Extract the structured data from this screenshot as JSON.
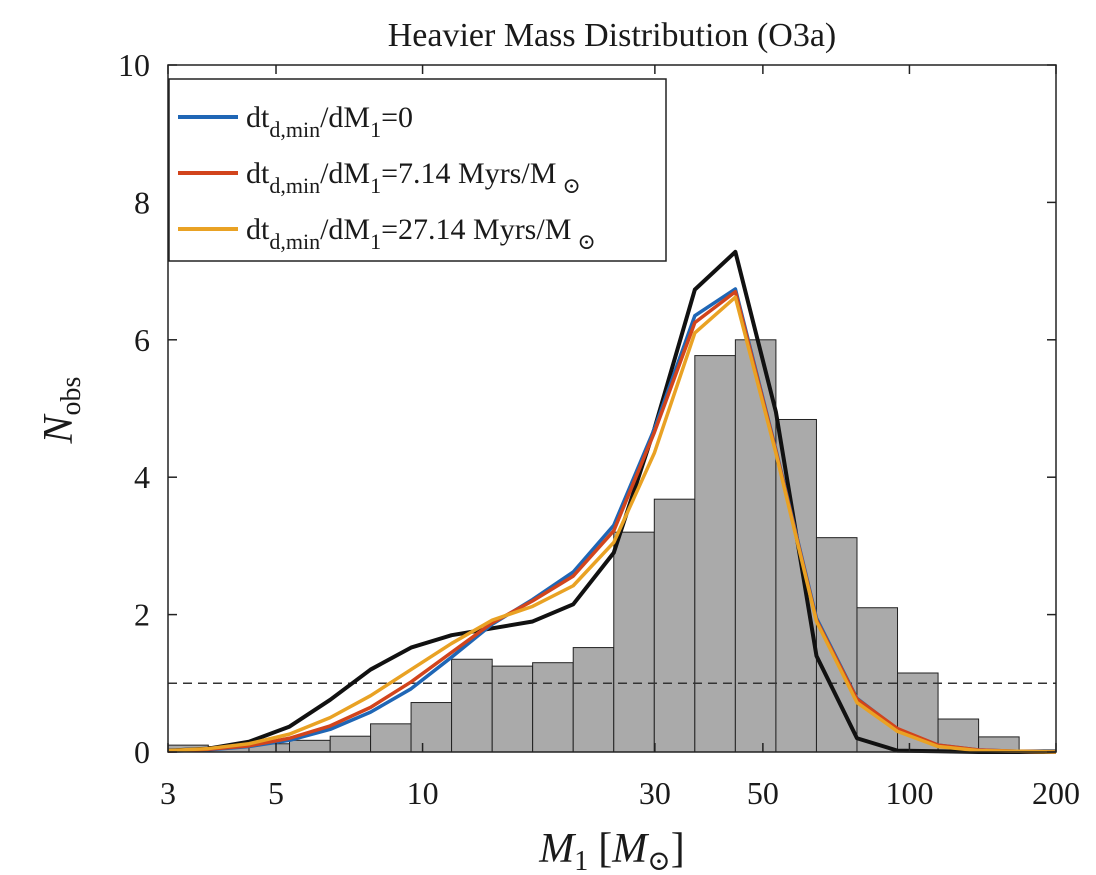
{
  "chart_data": {
    "type": "bar",
    "title": "Heavier Mass Distribution (O3a)",
    "xlabel": {
      "main": "M",
      "sub": "1",
      "bracket_open": "[",
      "unit_main": "M",
      "unit_sub": "⊙",
      "bracket_close": "]"
    },
    "ylabel": {
      "main": "N",
      "sub": "obs"
    },
    "xscale": "log",
    "xlim": [
      3,
      200
    ],
    "ylim": [
      0,
      10
    ],
    "xticks": [
      3,
      5,
      10,
      30,
      50,
      100,
      200
    ],
    "xtick_labels": [
      "3",
      "5",
      "10",
      "30",
      "50",
      "100",
      "200"
    ],
    "yticks": [
      0,
      2,
      4,
      6,
      8,
      10
    ],
    "ytick_labels": [
      "0",
      "2",
      "4",
      "6",
      "8",
      "10"
    ],
    "grid": false,
    "histogram": {
      "color": "#aaaaaa",
      "edgecolor": "#222222",
      "edges": [
        3,
        3.63,
        4.4,
        5.33,
        6.46,
        7.82,
        9.47,
        11.47,
        13.9,
        16.83,
        20.39,
        24.7,
        29.92,
        36.24,
        43.9,
        53.18,
        64.42,
        78.03,
        94.52,
        114.5,
        138.7,
        168.0,
        200
      ],
      "values": [
        0.1,
        0.08,
        0.12,
        0.17,
        0.23,
        0.41,
        0.72,
        1.35,
        1.25,
        1.3,
        1.52,
        3.2,
        3.68,
        5.77,
        6.0,
        4.84,
        3.12,
        2.1,
        1.15,
        0.48,
        0.22,
        0.03
      ]
    },
    "reference_line": {
      "y": 1,
      "style": "dashed",
      "color": "#333333"
    },
    "series": [
      {
        "name": "black",
        "color": "#111111",
        "in_legend": false,
        "x": [
          3,
          3.63,
          4.4,
          5.33,
          6.46,
          7.82,
          9.47,
          11.47,
          13.9,
          16.83,
          20.39,
          24.7,
          29.92,
          36.24,
          43.9,
          53.18,
          64.42,
          78.03,
          94.52,
          114.5,
          138.7,
          168.0,
          200
        ],
        "values": [
          0.02,
          0.05,
          0.15,
          0.37,
          0.76,
          1.2,
          1.52,
          1.7,
          1.8,
          1.9,
          2.15,
          2.9,
          4.7,
          6.73,
          7.28,
          4.95,
          1.4,
          0.2,
          0.02,
          0.01,
          0.0,
          0.0,
          0.0
        ]
      },
      {
        "name": "dt_d,min/dM_1=0",
        "color": "#1f66b5",
        "in_legend": true,
        "label": {
          "a": "dt",
          "b": "d,min",
          "c": "/dM",
          "d": "1",
          "e": "=0",
          "f": "",
          "g": ""
        },
        "x": [
          3,
          3.63,
          4.4,
          5.33,
          6.46,
          7.82,
          9.47,
          11.47,
          13.9,
          16.83,
          20.39,
          24.7,
          29.92,
          36.24,
          43.9,
          53.18,
          64.42,
          78.03,
          94.52,
          114.5,
          138.7,
          168.0,
          200
        ],
        "values": [
          0.01,
          0.03,
          0.08,
          0.17,
          0.33,
          0.58,
          0.92,
          1.38,
          1.86,
          2.22,
          2.62,
          3.3,
          4.7,
          6.35,
          6.74,
          4.4,
          1.95,
          0.78,
          0.33,
          0.1,
          0.03,
          0.01,
          0.0
        ]
      },
      {
        "name": "dt_d,min/dM_1=7.14 Myrs/M_sun",
        "color": "#d2441c",
        "in_legend": true,
        "label": {
          "a": "dt",
          "b": "d,min",
          "c": "/dM",
          "d": "1",
          "e": "=7.14 Myrs/M",
          "f": "⊙",
          "g": ""
        },
        "x": [
          3,
          3.63,
          4.4,
          5.33,
          6.46,
          7.82,
          9.47,
          11.47,
          13.9,
          16.83,
          20.39,
          24.7,
          29.92,
          36.24,
          43.9,
          53.18,
          64.42,
          78.03,
          94.52,
          114.5,
          138.7,
          168.0,
          200
        ],
        "values": [
          0.01,
          0.04,
          0.09,
          0.2,
          0.38,
          0.65,
          1.02,
          1.45,
          1.88,
          2.2,
          2.56,
          3.22,
          4.65,
          6.25,
          6.7,
          4.38,
          1.92,
          0.77,
          0.34,
          0.1,
          0.03,
          0.01,
          0.0
        ]
      },
      {
        "name": "dt_d,min/dM_1=27.14 Myrs/M_sun",
        "color": "#e9a224",
        "in_legend": true,
        "label": {
          "a": "dt",
          "b": "d,min",
          "c": "/dM",
          "d": "1",
          "e": "=27.14 Myrs/M",
          "f": "⊙",
          "g": ""
        },
        "x": [
          3,
          3.63,
          4.4,
          5.33,
          6.46,
          7.82,
          9.47,
          11.47,
          13.9,
          16.83,
          20.39,
          24.7,
          29.92,
          36.24,
          43.9,
          53.18,
          64.42,
          78.03,
          94.52,
          114.5,
          138.7,
          168.0,
          200
        ],
        "values": [
          0.02,
          0.05,
          0.12,
          0.26,
          0.5,
          0.82,
          1.2,
          1.58,
          1.92,
          2.12,
          2.42,
          3.05,
          4.35,
          6.1,
          6.62,
          4.35,
          1.9,
          0.72,
          0.3,
          0.08,
          0.02,
          0.01,
          0.0
        ]
      }
    ],
    "legend_position": "top-left"
  }
}
